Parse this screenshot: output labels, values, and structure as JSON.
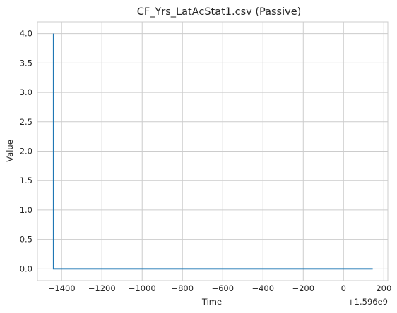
{
  "chart_data": {
    "type": "line",
    "title": "CF_Yrs_LatAcStat1.csv (Passive)",
    "xlabel": "Time",
    "ylabel": "Value",
    "x_offset_label": "+1.596e9",
    "xlim": [
      -1520,
      220
    ],
    "ylim": [
      -0.2,
      4.2
    ],
    "x_ticks": [
      -1400,
      -1200,
      -1000,
      -800,
      -600,
      -400,
      -200,
      0,
      200
    ],
    "x_tick_labels": [
      "−1400",
      "−1200",
      "−1000",
      "−800",
      "−600",
      "−400",
      "−200",
      "0",
      "200"
    ],
    "y_ticks": [
      0,
      0.5,
      1.0,
      1.5,
      2.0,
      2.5,
      3.0,
      3.5,
      4.0
    ],
    "y_tick_labels": [
      "0.0",
      "0.5",
      "1.0",
      "1.5",
      "2.0",
      "2.5",
      "3.0",
      "3.5",
      "4.0"
    ],
    "grid": true,
    "legend": "none",
    "series": [
      {
        "color": "#1f77b4",
        "x": [
          -1440,
          -1440,
          145
        ],
        "y": [
          4.0,
          0.0,
          0.0
        ]
      }
    ]
  }
}
